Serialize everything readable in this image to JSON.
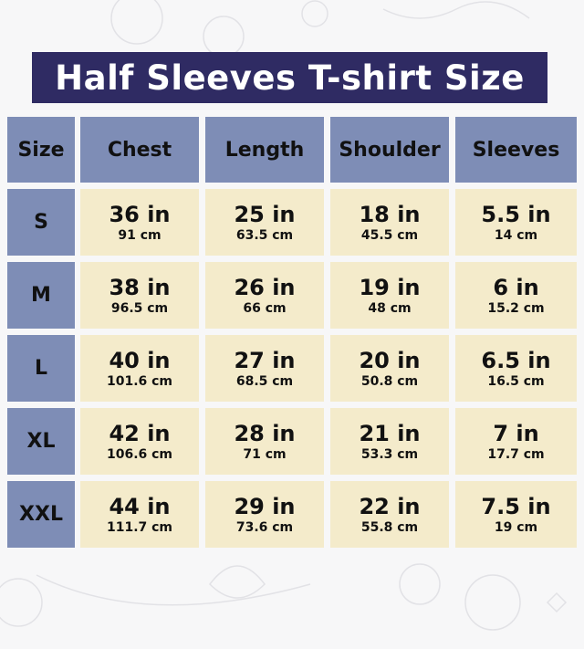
{
  "title": "Half Sleeves T-shirt Size",
  "colors": {
    "title_bg": "#2f2b63",
    "header_bg": "#7e8db6",
    "cell_bg": "#f4ebcb"
  },
  "headers": [
    "Size",
    "Chest",
    "Length",
    "Shoulder",
    "Sleeves"
  ],
  "rows": [
    {
      "size": "S",
      "values": [
        {
          "in": "36 in",
          "cm": "91 cm"
        },
        {
          "in": "25 in",
          "cm": "63.5 cm"
        },
        {
          "in": "18 in",
          "cm": "45.5 cm"
        },
        {
          "in": "5.5 in",
          "cm": "14 cm"
        }
      ]
    },
    {
      "size": "M",
      "values": [
        {
          "in": "38 in",
          "cm": "96.5 cm"
        },
        {
          "in": "26 in",
          "cm": "66 cm"
        },
        {
          "in": "19 in",
          "cm": "48 cm"
        },
        {
          "in": "6 in",
          "cm": "15.2 cm"
        }
      ]
    },
    {
      "size": "L",
      "values": [
        {
          "in": "40 in",
          "cm": "101.6 cm"
        },
        {
          "in": "27 in",
          "cm": "68.5 cm"
        },
        {
          "in": "20 in",
          "cm": "50.8 cm"
        },
        {
          "in": "6.5 in",
          "cm": "16.5 cm"
        }
      ]
    },
    {
      "size": "XL",
      "values": [
        {
          "in": "42 in",
          "cm": "106.6 cm"
        },
        {
          "in": "28 in",
          "cm": "71 cm"
        },
        {
          "in": "21 in",
          "cm": "53.3 cm"
        },
        {
          "in": "7 in",
          "cm": "17.7 cm"
        }
      ]
    },
    {
      "size": "XXL",
      "values": [
        {
          "in": "44 in",
          "cm": "111.7 cm"
        },
        {
          "in": "29 in",
          "cm": "73.6 cm"
        },
        {
          "in": "22 in",
          "cm": "55.8 cm"
        },
        {
          "in": "7.5 in",
          "cm": "19 cm"
        }
      ]
    }
  ]
}
